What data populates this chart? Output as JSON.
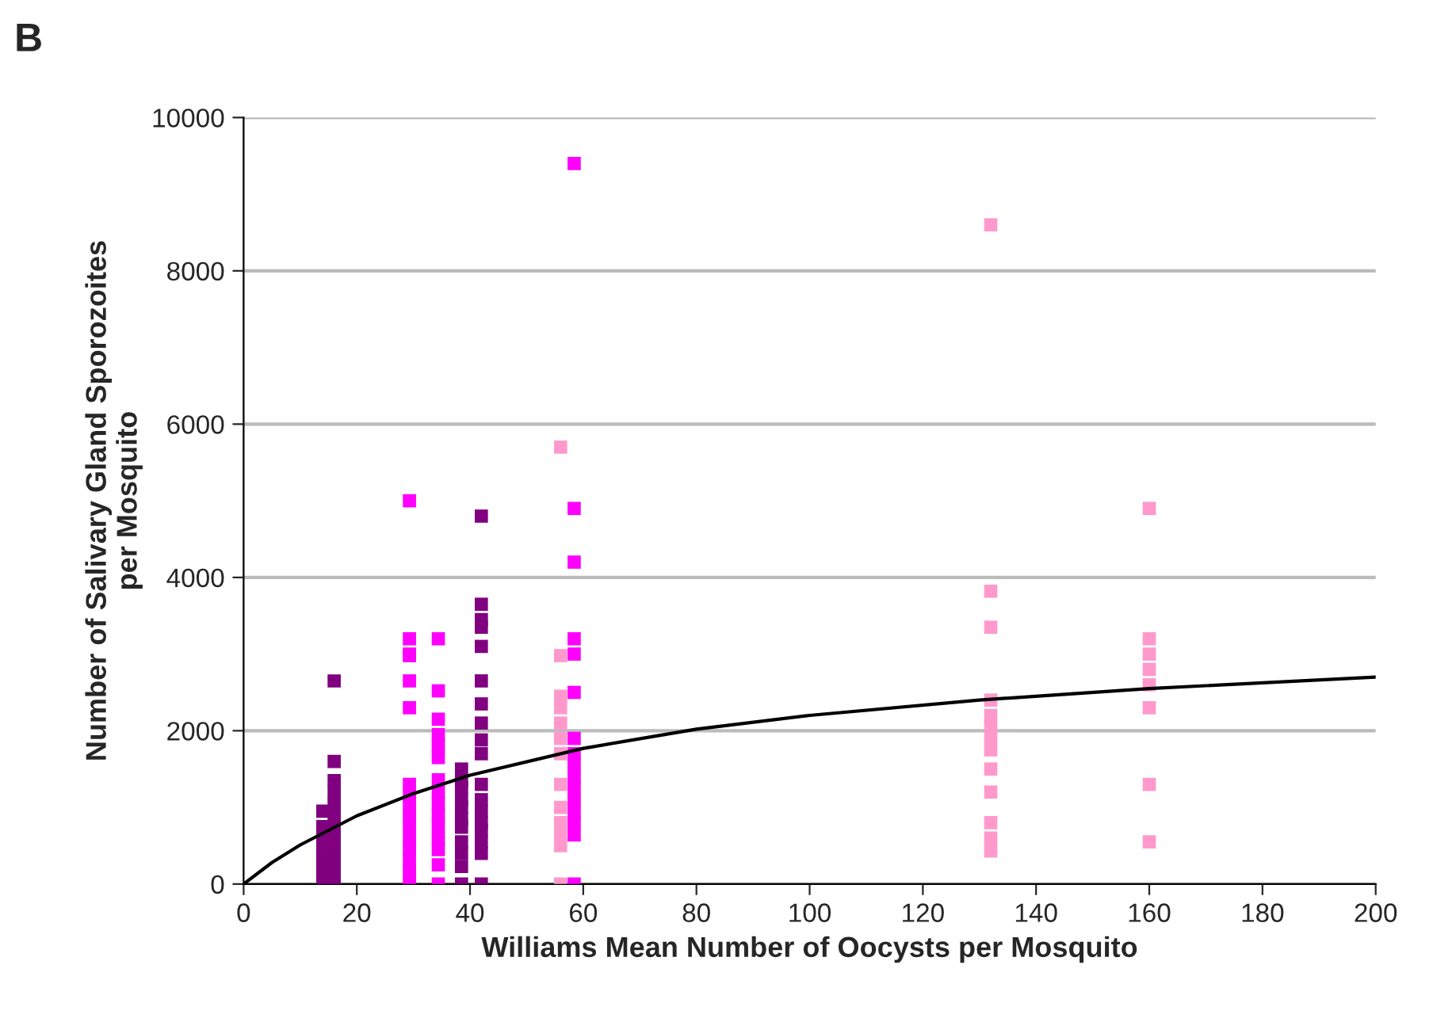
{
  "chart_data": {
    "type": "scatter",
    "title": "B",
    "xlabel": "Williams Mean Number of Oocysts per Mosquito",
    "ylabel": "Number of Salivary Gland Sporozoites\nper Mosquito",
    "xlim": [
      0,
      200
    ],
    "ylim": [
      0,
      10000
    ],
    "xticks": [
      0,
      20,
      40,
      60,
      80,
      100,
      120,
      140,
      160,
      180,
      200
    ],
    "yticks": [
      0,
      2000,
      4000,
      6000,
      8000,
      10000
    ],
    "grid": "y",
    "marker": "square",
    "legend": false,
    "series": [
      {
        "color": "#800080",
        "x": [
          14,
          14,
          14,
          14,
          14,
          14,
          14,
          16,
          16,
          16,
          16,
          16,
          16,
          16,
          16,
          16,
          16,
          16,
          16,
          38.5,
          38.5,
          38.5,
          38.5,
          38.5,
          38.5,
          38.5,
          38.5,
          38.5,
          38.5,
          38.5,
          42,
          42,
          42,
          42,
          42,
          42,
          42,
          42,
          42,
          42,
          42,
          42,
          42,
          42,
          42,
          42,
          42,
          42
        ],
        "values": [
          0,
          150,
          300,
          450,
          600,
          750,
          950,
          0,
          150,
          300,
          450,
          600,
          750,
          900,
          1050,
          1200,
          1350,
          1600,
          2650,
          0,
          230,
          400,
          550,
          740,
          850,
          1000,
          1100,
          1250,
          1350,
          1500,
          0,
          400,
          550,
          700,
          800,
          950,
          1100,
          1300,
          1700,
          1880,
          2100,
          2350,
          2650,
          3100,
          3350,
          3450,
          3650,
          4800
        ]
      },
      {
        "color": "#ff00ff",
        "x": [
          29.3,
          29.3,
          29.3,
          29.3,
          29.3,
          29.3,
          29.3,
          29.3,
          29.3,
          29.3,
          29.3,
          29.3,
          29.3,
          29.3,
          29.3,
          29.3,
          34.4,
          34.4,
          34.4,
          34.4,
          34.4,
          34.4,
          34.4,
          34.4,
          34.4,
          34.4,
          34.4,
          34.4,
          34.4,
          34.4,
          34.4,
          58.4,
          58.4,
          58.4,
          58.4,
          58.4,
          58.4,
          58.4,
          58.4,
          58.4,
          58.4,
          58.4,
          58.4,
          58.4,
          58.4,
          58.4,
          58.4
        ],
        "values": [
          0,
          150,
          300,
          450,
          600,
          750,
          900,
          1050,
          1150,
          1300,
          2300,
          2650,
          3000,
          3200,
          5000,
          2980,
          0,
          250,
          450,
          600,
          750,
          900,
          1050,
          1200,
          1360,
          1800,
          1950,
          2150,
          2520,
          3200,
          1650,
          0,
          640,
          800,
          950,
          1100,
          1250,
          1400,
          1550,
          1700,
          1900,
          2500,
          3000,
          3200,
          4200,
          4900,
          9400
        ]
      },
      {
        "color": "#ff99cc",
        "x": [
          56,
          56,
          56,
          56,
          56,
          56,
          56,
          56,
          56,
          56,
          56,
          56,
          56,
          132,
          132,
          132,
          132,
          132,
          132,
          132,
          132,
          132,
          132,
          132,
          132,
          132,
          160,
          160,
          160,
          160,
          160,
          160,
          160,
          160
        ],
        "values": [
          0,
          500,
          650,
          800,
          1000,
          1300,
          1700,
          1900,
          2100,
          2300,
          2450,
          2980,
          5700,
          430,
          600,
          800,
          1200,
          1500,
          1750,
          1900,
          2050,
          2200,
          2400,
          3350,
          3820,
          8600,
          550,
          1300,
          2300,
          2600,
          2800,
          3000,
          3200,
          4900
        ]
      },
      {
        "type": "line",
        "marker": "none",
        "color": "#000000",
        "x": [
          0,
          5,
          10,
          20,
          30,
          40,
          60,
          80,
          100,
          130,
          160,
          200
        ],
        "values": [
          0,
          280,
          510,
          890,
          1180,
          1420,
          1770,
          2020,
          2200,
          2400,
          2550,
          2700
        ]
      }
    ]
  }
}
